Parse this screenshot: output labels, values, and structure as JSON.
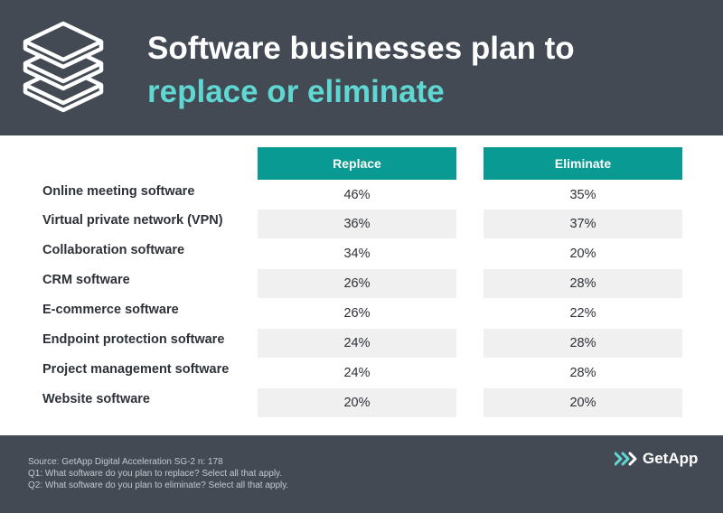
{
  "header": {
    "title_line1": "Software businesses plan to",
    "title_line2": "replace or eliminate",
    "icon": "layers-icon"
  },
  "colors": {
    "header_bg": "#434a54",
    "accent_teal": "#0a9a94",
    "highlight_text": "#5fd7d2",
    "row_shade": "#f0f0f0"
  },
  "chart_data": {
    "type": "table",
    "columns": [
      "Replace",
      "Eliminate"
    ],
    "rows": [
      {
        "label": "Online meeting software",
        "replace": "46%",
        "eliminate": "35%"
      },
      {
        "label": "Virtual private network (VPN)",
        "replace": "36%",
        "eliminate": "37%"
      },
      {
        "label": "Collaboration software",
        "replace": "34%",
        "eliminate": "20%"
      },
      {
        "label": "CRM software",
        "replace": "26%",
        "eliminate": "28%"
      },
      {
        "label": "E-commerce software",
        "replace": "26%",
        "eliminate": "22%"
      },
      {
        "label": "Endpoint protection software",
        "replace": "24%",
        "eliminate": "28%"
      },
      {
        "label": "Project management software",
        "replace": "24%",
        "eliminate": "28%"
      },
      {
        "label": "Website software",
        "replace": "20%",
        "eliminate": "20%"
      }
    ]
  },
  "footer": {
    "source": "Source: GetApp Digital Acceleration SG-2 n: 178",
    "q1": "Q1: What software do you plan to replace? Select all that apply.",
    "q2": "Q2: What software do you plan to eliminate? Select all that apply.",
    "brand": "GetApp",
    "brand_icon": "getapp-chevrons-icon"
  }
}
